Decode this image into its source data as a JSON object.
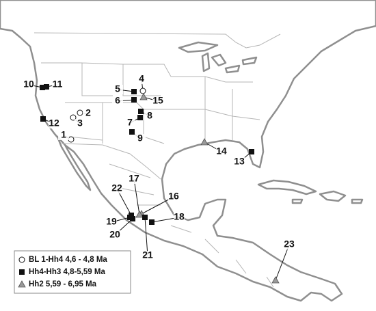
{
  "legend": [
    {
      "symbol": "circle",
      "label": "BL 1-Hh4  4,6 - 4,8 Ma"
    },
    {
      "symbol": "square",
      "label": "Hh4-Hh3 4,8-5,59 Ma"
    },
    {
      "symbol": "triangle",
      "label": "Hh2 5,59 - 6,95 Ma"
    }
  ],
  "sites": [
    {
      "label": "1",
      "group": 0
    },
    {
      "label": "2",
      "group": 0
    },
    {
      "label": "3",
      "group": 0
    },
    {
      "label": "4",
      "group": 0
    },
    {
      "label": "5",
      "group": 1
    },
    {
      "label": "6",
      "group": 1
    },
    {
      "label": "7",
      "group": 1
    },
    {
      "label": "8",
      "group": 1
    },
    {
      "label": "9",
      "group": 1
    },
    {
      "label": "10",
      "group": 1
    },
    {
      "label": "11",
      "group": 1
    },
    {
      "label": "12",
      "group": 1
    },
    {
      "label": "13",
      "group": 1
    },
    {
      "label": "14",
      "group": 2
    },
    {
      "label": "15",
      "group": 2
    },
    {
      "label": "16",
      "group": 2
    },
    {
      "label": "17",
      "group": 2
    },
    {
      "label": "18",
      "group": 1
    },
    {
      "label": "19",
      "group": 1
    },
    {
      "label": "20",
      "group": 1
    },
    {
      "label": "21",
      "group": 1
    },
    {
      "label": "22",
      "group": 1
    },
    {
      "label": "23",
      "group": 2
    }
  ]
}
